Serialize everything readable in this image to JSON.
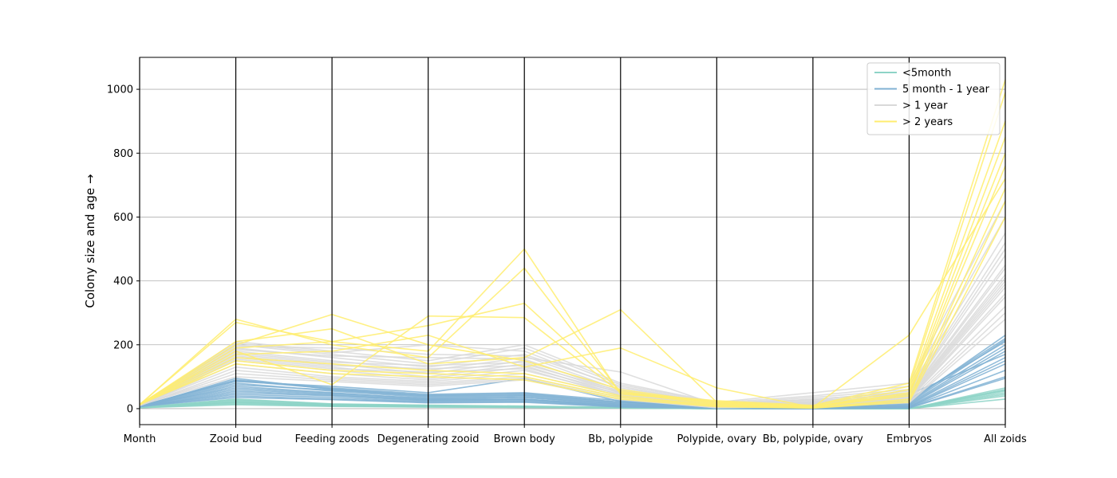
{
  "chart_data": {
    "type": "line",
    "subtype": "parallel-coordinates",
    "title": "",
    "ylabel": "Colony size and age →",
    "ylim": [
      -50,
      1100
    ],
    "yticks": [
      0,
      200,
      400,
      600,
      800,
      1000
    ],
    "grid": "y",
    "legend": "top-right",
    "categories": [
      "Month",
      "Zooid bud",
      "Feeding zoods",
      "Degenerating zooid",
      "Brown body",
      "Bb, polypide",
      "Polypide, ovary",
      "Bb, polypide, ovary",
      "Embryos",
      "All zoids"
    ],
    "groups": [
      {
        "name": "<5month",
        "color": "#8dd3c7",
        "lines": [
          [
            3,
            15,
            8,
            5,
            4,
            2,
            0,
            0,
            0,
            30
          ],
          [
            4,
            20,
            10,
            6,
            5,
            3,
            0,
            0,
            0,
            45
          ],
          [
            3,
            25,
            12,
            8,
            6,
            3,
            0,
            0,
            0,
            55
          ],
          [
            4,
            18,
            9,
            7,
            5,
            2,
            0,
            0,
            0,
            60
          ],
          [
            3,
            22,
            11,
            9,
            6,
            4,
            0,
            0,
            0,
            50
          ],
          [
            4,
            28,
            14,
            10,
            7,
            3,
            0,
            0,
            0,
            65
          ],
          [
            3,
            12,
            7,
            5,
            4,
            2,
            0,
            0,
            0,
            40
          ],
          [
            4,
            30,
            15,
            11,
            8,
            4,
            0,
            0,
            0,
            58
          ]
        ]
      },
      {
        "name": "5 month - 1 year",
        "color": "#80b1d3",
        "lines": [
          [
            6,
            95,
            60,
            40,
            45,
            20,
            5,
            0,
            20,
            230
          ],
          [
            7,
            80,
            55,
            35,
            40,
            15,
            3,
            0,
            15,
            200
          ],
          [
            6,
            70,
            50,
            30,
            35,
            12,
            4,
            0,
            10,
            180
          ],
          [
            7,
            60,
            45,
            28,
            30,
            10,
            2,
            0,
            8,
            160
          ],
          [
            8,
            90,
            65,
            45,
            50,
            25,
            6,
            0,
            25,
            220
          ],
          [
            6,
            50,
            40,
            25,
            28,
            8,
            2,
            0,
            5,
            140
          ],
          [
            7,
            45,
            35,
            22,
            25,
            7,
            1,
            0,
            4,
            120
          ],
          [
            8,
            85,
            70,
            50,
            95,
            22,
            5,
            0,
            30,
            210
          ],
          [
            6,
            40,
            30,
            20,
            22,
            6,
            1,
            0,
            3,
            100
          ],
          [
            7,
            75,
            58,
            38,
            42,
            18,
            4,
            0,
            12,
            190
          ],
          [
            8,
            65,
            48,
            32,
            36,
            14,
            3,
            0,
            45,
            170
          ],
          [
            6,
            55,
            42,
            26,
            30,
            9,
            2,
            0,
            6,
            150
          ],
          [
            7,
            35,
            28,
            18,
            20,
            5,
            1,
            0,
            2,
            95
          ],
          [
            8,
            88,
            62,
            42,
            48,
            20,
            5,
            0,
            18,
            215
          ]
        ]
      },
      {
        "name": "> 1 year",
        "color": "#d9d9d9",
        "lines": [
          [
            9,
            210,
            180,
            150,
            200,
            80,
            20,
            50,
            80,
            650
          ],
          [
            10,
            200,
            170,
            140,
            190,
            75,
            18,
            40,
            70,
            600
          ],
          [
            11,
            190,
            160,
            130,
            170,
            70,
            15,
            35,
            60,
            550
          ],
          [
            9,
            180,
            150,
            120,
            160,
            115,
            12,
            30,
            50,
            500
          ],
          [
            10,
            170,
            140,
            110,
            150,
            60,
            10,
            25,
            45,
            450
          ],
          [
            11,
            160,
            130,
            100,
            140,
            55,
            8,
            20,
            40,
            420
          ],
          [
            9,
            150,
            120,
            95,
            130,
            50,
            7,
            18,
            35,
            400
          ],
          [
            10,
            140,
            110,
            90,
            120,
            45,
            6,
            15,
            30,
            380
          ],
          [
            11,
            130,
            100,
            85,
            110,
            40,
            5,
            12,
            28,
            350
          ],
          [
            9,
            120,
            95,
            80,
            100,
            35,
            4,
            10,
            25,
            320
          ],
          [
            10,
            110,
            90,
            75,
            95,
            30,
            3,
            8,
            20,
            300
          ],
          [
            11,
            100,
            85,
            70,
            90,
            28,
            3,
            6,
            18,
            280
          ],
          [
            9,
            205,
            175,
            200,
            180,
            65,
            16,
            28,
            55,
            520
          ],
          [
            10,
            195,
            190,
            170,
            165,
            58,
            14,
            22,
            48,
            480
          ],
          [
            11,
            185,
            165,
            160,
            155,
            52,
            12,
            18,
            42,
            440
          ],
          [
            9,
            175,
            145,
            135,
            145,
            48,
            10,
            15,
            38,
            410
          ],
          [
            10,
            165,
            135,
            125,
            135,
            42,
            9,
            12,
            33,
            390
          ],
          [
            11,
            155,
            125,
            115,
            125,
            38,
            8,
            10,
            30,
            360
          ]
        ]
      },
      {
        "name": "> 2 years",
        "color": "#ffed6f",
        "lines": [
          [
            12,
            280,
            200,
            160,
            440,
            50,
            25,
            10,
            80,
            1030
          ],
          [
            13,
            270,
            210,
            180,
            500,
            45,
            22,
            8,
            70,
            990
          ],
          [
            12,
            210,
            250,
            140,
            160,
            310,
            20,
            5,
            60,
            900
          ],
          [
            14,
            200,
            295,
            200,
            150,
            60,
            18,
            6,
            50,
            850
          ],
          [
            13,
            190,
            210,
            260,
            330,
            55,
            15,
            7,
            45,
            800
          ],
          [
            12,
            180,
            75,
            290,
            285,
            50,
            12,
            5,
            40,
            760
          ],
          [
            14,
            170,
            180,
            230,
            130,
            190,
            65,
            4,
            230,
            720
          ],
          [
            13,
            160,
            140,
            120,
            110,
            40,
            10,
            3,
            30,
            690
          ],
          [
            12,
            150,
            120,
            110,
            100,
            35,
            8,
            2,
            25,
            650
          ],
          [
            14,
            140,
            110,
            100,
            90,
            30,
            6,
            2,
            20,
            600
          ]
        ]
      }
    ]
  }
}
